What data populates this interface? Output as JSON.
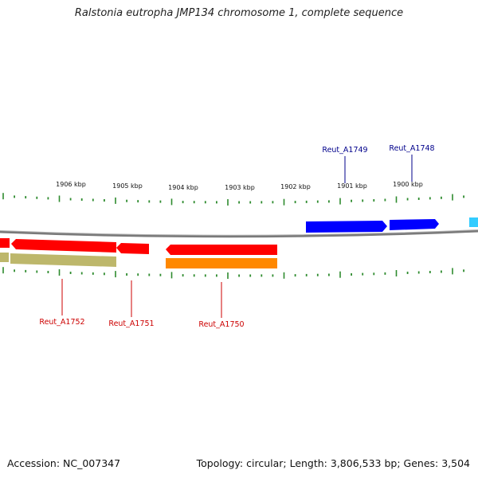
{
  "title": "Ralstonia eutropha JMP134 chromosome 1, complete sequence",
  "footer": {
    "accession": "Accession: NC_007347",
    "summary": "Topology: circular; Length: 3,806,533 bp; Genes: 3,504"
  },
  "colors": {
    "background": "#ffffff",
    "backbone": "#7a7a7a",
    "ticks": "#2e8b2e",
    "forward_gene": "#0000ff",
    "forward_gene_label": "#00008b",
    "reverse_gene": "#ff0000",
    "reverse_gene_label": "#cc0000",
    "cyan_gene": "#33ccff",
    "olive_gene": "#bdb76b",
    "orange_gene": "#ff8800"
  },
  "scale_labels": [
    "1906 kbp",
    "1905 kbp",
    "1904 kbp",
    "1903 kbp",
    "1902 kbp",
    "1901 kbp",
    "1900 kbp"
  ],
  "gene_labels": {
    "forward": [
      "Reut_A1749",
      "Reut_A1748"
    ],
    "reverse": [
      "Reut_A1752",
      "Reut_A1751",
      "Reut_A1750"
    ]
  }
}
